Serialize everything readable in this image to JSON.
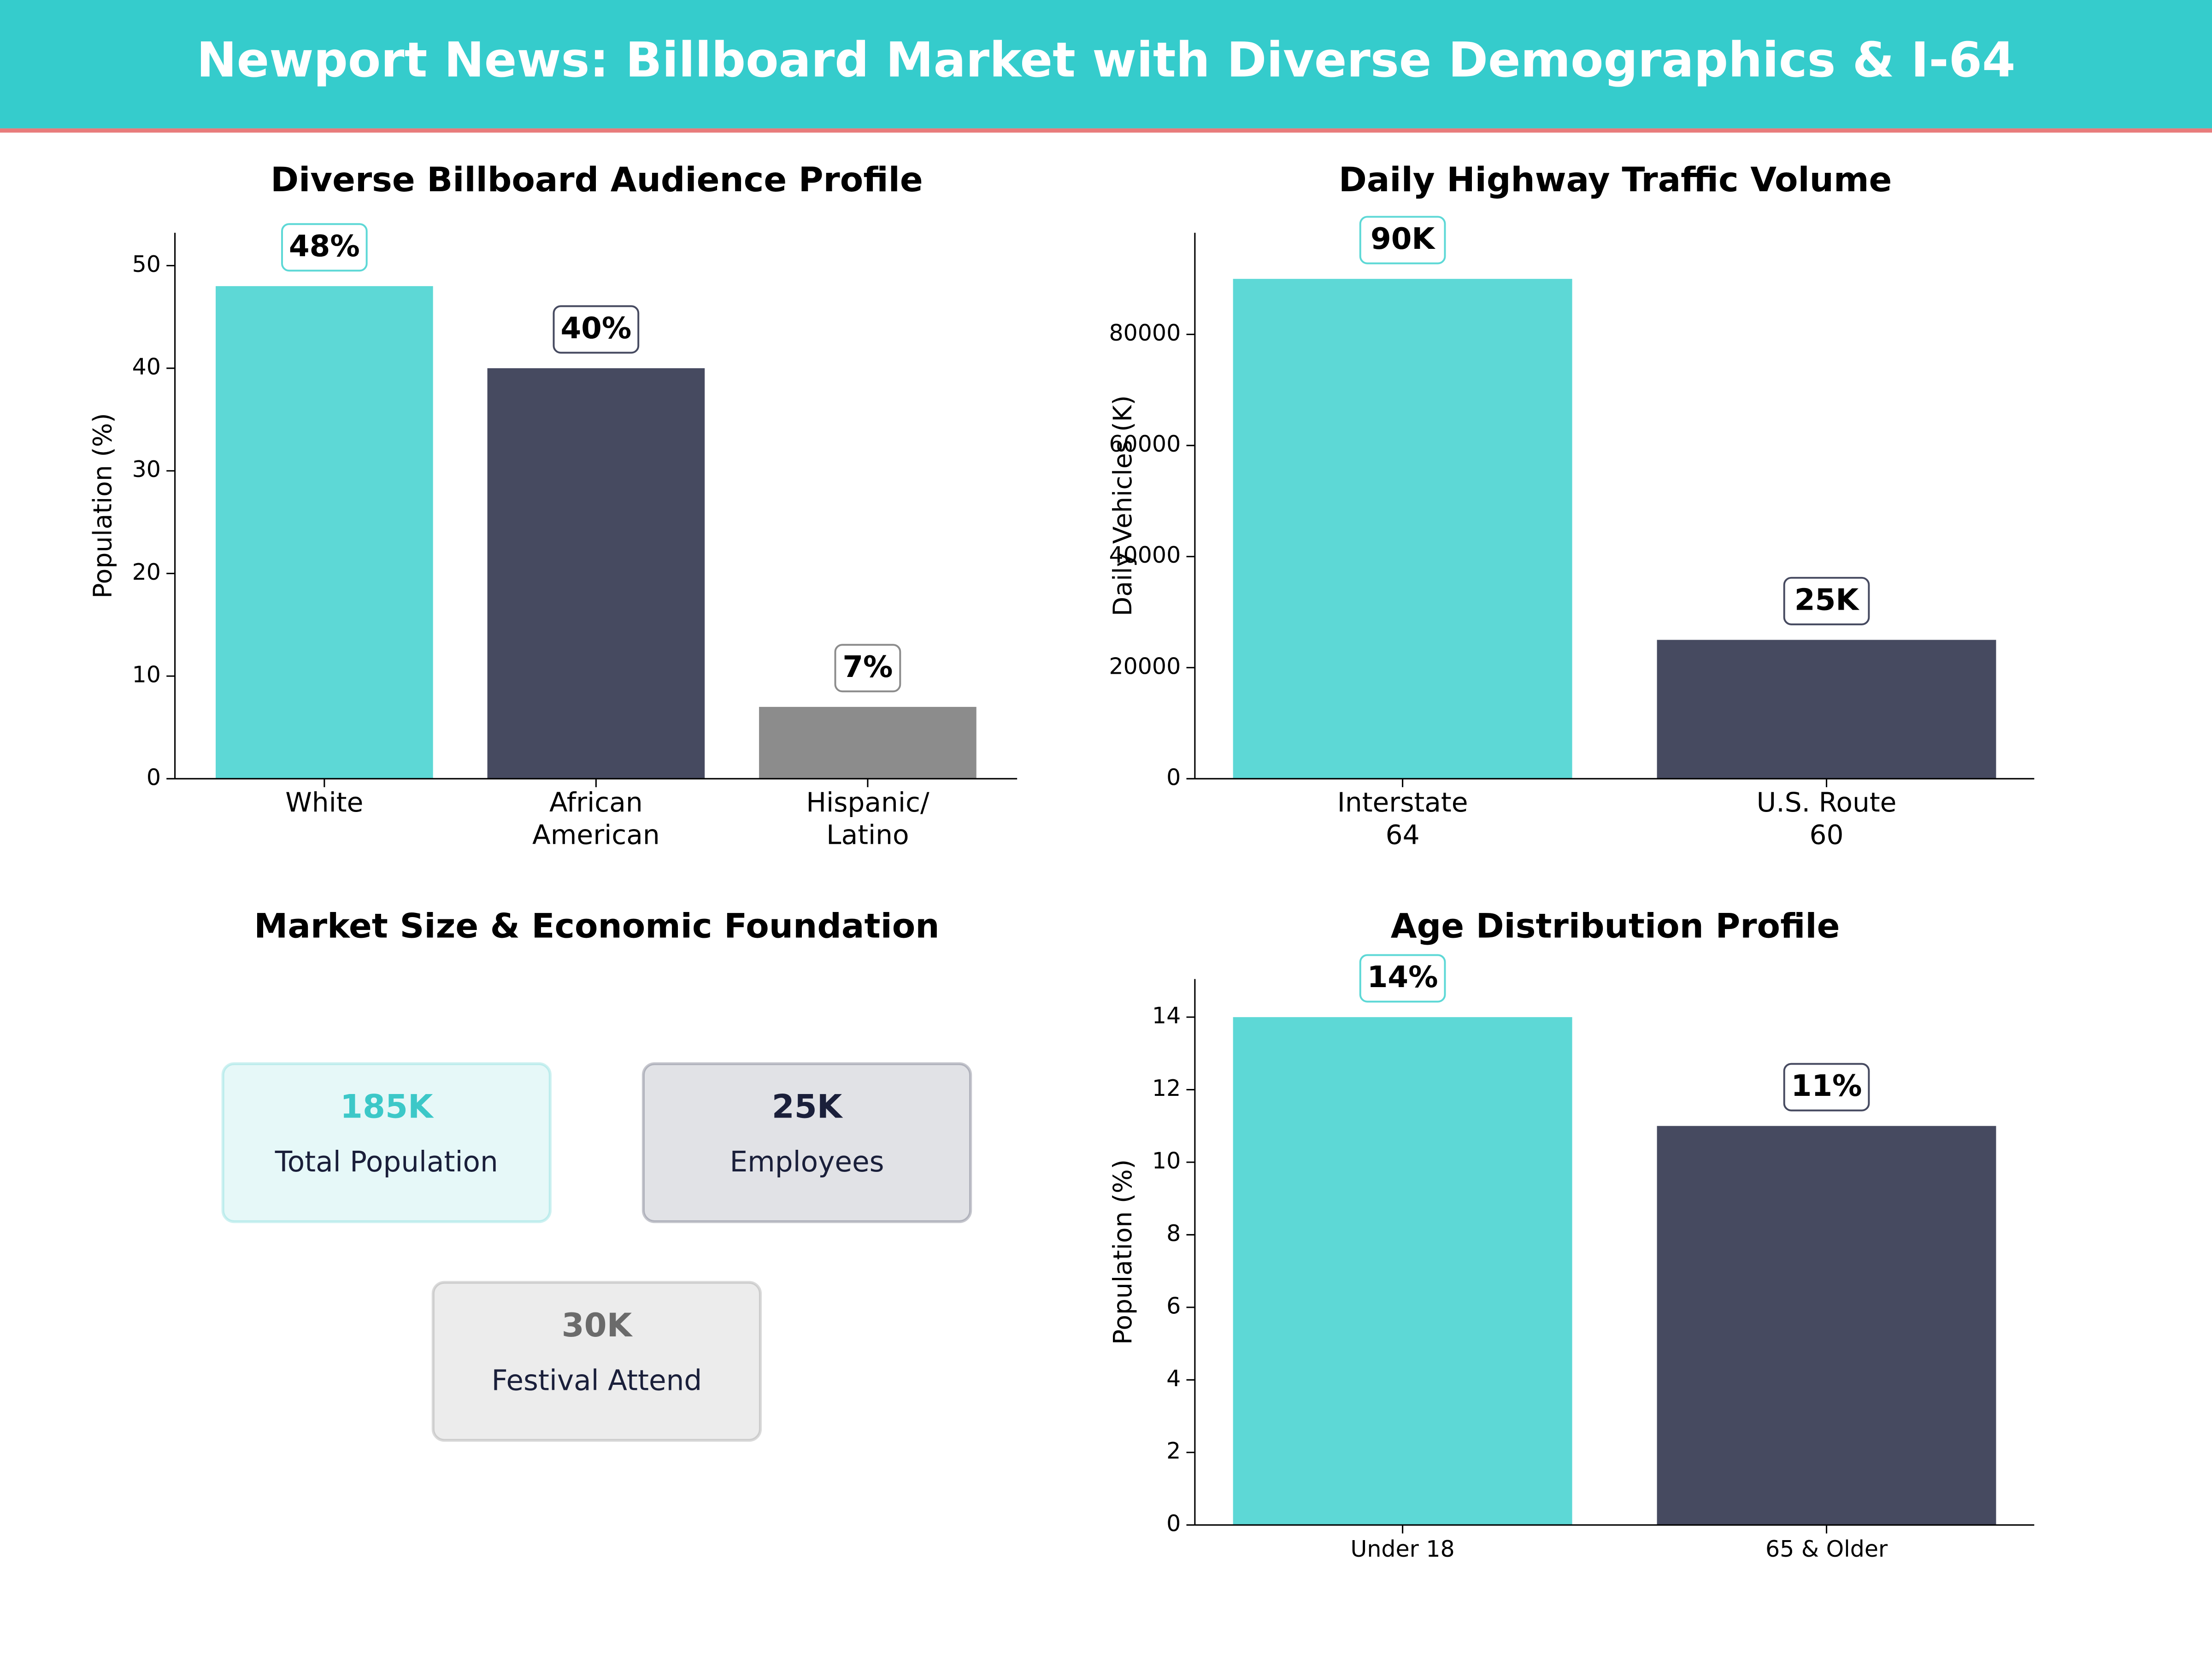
{
  "title": "Newport News: Billboard Market with Diverse Demographics & I-64",
  "chart_data": [
    {
      "type": "bar",
      "title": "Diverse Billboard Audience Profile",
      "y_label": "Population (%)",
      "categories": [
        "White",
        "African\nAmerican",
        "Hispanic/\nLatino"
      ],
      "values": [
        48,
        40,
        7
      ],
      "value_labels": [
        "48%",
        "40%",
        "7%"
      ],
      "colors": [
        "#5dd8d6",
        "#464a60",
        "#8c8c8c"
      ],
      "ylim": [
        0,
        53.2
      ],
      "yticks": [
        0,
        10,
        20,
        30,
        40,
        50
      ]
    },
    {
      "type": "bar",
      "title": "Daily Highway Traffic Volume",
      "y_label": "Daily Vehicles (K)",
      "categories": [
        "Interstate\n64",
        "U.S. Route\n60"
      ],
      "values": [
        90000,
        25000
      ],
      "value_labels": [
        "90K",
        "25K"
      ],
      "colors": [
        "#5dd8d6",
        "#464a60"
      ],
      "ylim": [
        0,
        98300
      ],
      "yticks": [
        0,
        20000,
        40000,
        60000,
        80000
      ]
    },
    {
      "type": "cards",
      "title": "Market Size & Economic Foundation",
      "cards": [
        {
          "value": "185K",
          "label": "Total Population",
          "color": "#3cc8c8"
        },
        {
          "value": "25K",
          "label": "Employees",
          "color": "#1a1f3a"
        },
        {
          "value": "30K",
          "label": "Festival Attend",
          "color": "#6b6b6b"
        }
      ]
    },
    {
      "type": "bar",
      "title": "Age Distribution Profile",
      "y_label": "Population (%)",
      "categories": [
        "Under 18",
        "65 & Older"
      ],
      "values": [
        14,
        11
      ],
      "value_labels": [
        "14%",
        "11%"
      ],
      "colors": [
        "#5dd8d6",
        "#464a60"
      ],
      "ylim": [
        0,
        15.05
      ],
      "yticks": [
        0,
        2,
        4,
        6,
        8,
        10,
        12,
        14
      ]
    }
  ]
}
